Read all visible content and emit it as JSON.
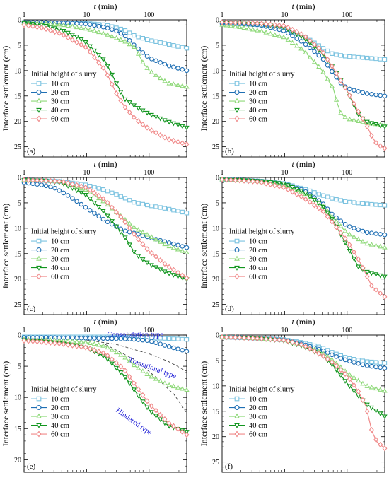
{
  "figure": {
    "series_styles": {
      "10 cm": {
        "color": "#7cc3e0",
        "marker": "square"
      },
      "20 cm": {
        "color": "#1f6fb4",
        "marker": "circle"
      },
      "30 cm": {
        "color": "#8fd97a",
        "marker": "triangle-up"
      },
      "40 cm": {
        "color": "#12961f",
        "marker": "triangle-down"
      },
      "60 cm": {
        "color": "#f08a8a",
        "marker": "diamond"
      }
    }
  },
  "chart_data": [
    {
      "type": "line",
      "panel_label": "(a)",
      "xlabel_var": "t",
      "xlabel_unit": " (min)",
      "ylabel": "Interface settlement (cm)",
      "x_scale": "log",
      "xlim": [
        1,
        400
      ],
      "ylim": [
        0,
        27
      ],
      "y_inverted": true,
      "x_ticks": [
        1,
        10,
        100
      ],
      "x_tick_labels": [
        "1",
        "10",
        "100"
      ],
      "y_ticks": [
        0,
        5,
        10,
        15,
        20,
        25
      ],
      "y_tick_labels": [
        "0",
        "5",
        "10",
        "15",
        "20",
        "25"
      ],
      "legend_title": "Initial height of slurry",
      "legend_placement": "left-middle",
      "series": [
        {
          "name": "10 cm",
          "x": [
            1,
            2,
            4,
            10,
            20,
            40,
            60,
            100,
            200,
            400
          ],
          "y": [
            0.5,
            0.6,
            0.6,
            0.7,
            1.0,
            2.0,
            3.2,
            4.0,
            4.8,
            5.6
          ]
        },
        {
          "name": "20 cm",
          "x": [
            1,
            2,
            4,
            10,
            20,
            30,
            40,
            60,
            100,
            200,
            400
          ],
          "y": [
            0.5,
            0.5,
            0.6,
            0.8,
            1.5,
            2.2,
            3.0,
            5.2,
            7.5,
            9.0,
            10.0
          ]
        },
        {
          "name": "30 cm",
          "x": [
            1,
            2,
            4,
            10,
            20,
            40,
            60,
            80,
            100,
            200,
            400
          ],
          "y": [
            0.6,
            0.7,
            1.0,
            1.8,
            2.8,
            4.2,
            5.5,
            8.5,
            10.0,
            12.5,
            13.2
          ]
        },
        {
          "name": "40 cm",
          "x": [
            1,
            2,
            4,
            7,
            10,
            20,
            30,
            40,
            60,
            100,
            200,
            400
          ],
          "y": [
            0.6,
            1.0,
            2.0,
            3.3,
            4.5,
            8.2,
            12.5,
            15.5,
            17.0,
            18.5,
            20.0,
            21.2
          ]
        },
        {
          "name": "60 cm",
          "x": [
            1,
            2,
            4,
            10,
            20,
            30,
            40,
            60,
            100,
            200,
            400
          ],
          "y": [
            1.0,
            1.6,
            2.8,
            5.5,
            10.0,
            14.5,
            17.0,
            19.5,
            21.5,
            23.5,
            24.5
          ]
        }
      ]
    },
    {
      "type": "line",
      "panel_label": "(b)",
      "xlabel_var": "t",
      "xlabel_unit": " (min)",
      "ylabel": "Interface settlement (cm)",
      "x_scale": "log",
      "xlim": [
        1,
        400
      ],
      "ylim": [
        0,
        27
      ],
      "y_inverted": true,
      "x_ticks": [
        1,
        10,
        100
      ],
      "x_tick_labels": [
        "1",
        "10",
        "100"
      ],
      "y_ticks": [
        0,
        5,
        10,
        15,
        20,
        25
      ],
      "y_tick_labels": [
        "0",
        "5",
        "10",
        "15",
        "20",
        "25"
      ],
      "legend_title": "Initial height of slurry",
      "legend_placement": "left-middle",
      "series": [
        {
          "name": "10 cm",
          "x": [
            1,
            2,
            4,
            10,
            20,
            40,
            60,
            100,
            200,
            400
          ],
          "y": [
            0.7,
            0.8,
            1.0,
            1.8,
            3.2,
            5.5,
            6.8,
            7.2,
            7.5,
            7.8
          ]
        },
        {
          "name": "20 cm",
          "x": [
            1,
            2,
            4,
            10,
            20,
            40,
            60,
            80,
            100,
            200,
            400
          ],
          "y": [
            0.7,
            0.8,
            1.0,
            2.2,
            4.5,
            7.5,
            10.5,
            12.5,
            13.5,
            14.5,
            15.0
          ]
        },
        {
          "name": "30 cm",
          "x": [
            1,
            2,
            4,
            10,
            20,
            40,
            60,
            70,
            80,
            100,
            200,
            400
          ],
          "y": [
            1.0,
            1.5,
            2.2,
            3.5,
            6.0,
            10.0,
            13.5,
            16.5,
            18.5,
            19.5,
            20.3,
            20.8
          ]
        },
        {
          "name": "40 cm",
          "x": [
            1,
            2,
            4,
            10,
            20,
            40,
            60,
            80,
            100,
            150,
            200,
            400
          ],
          "y": [
            0.6,
            0.7,
            0.8,
            1.5,
            3.5,
            6.5,
            9.5,
            12.0,
            14.0,
            18.5,
            20.0,
            21.0
          ]
        },
        {
          "name": "60 cm",
          "x": [
            1,
            2,
            4,
            10,
            20,
            40,
            60,
            100,
            150,
            200,
            250,
            300,
            400
          ],
          "y": [
            0.5,
            0.6,
            0.7,
            1.2,
            3.0,
            6.2,
            9.5,
            14.0,
            18.0,
            20.5,
            23.0,
            24.5,
            25.3
          ]
        }
      ]
    },
    {
      "type": "line",
      "panel_label": "(c)",
      "xlabel_var": "t",
      "xlabel_unit": " (min)",
      "ylabel": "Interface settlement (cm)",
      "x_scale": "log",
      "xlim": [
        1,
        400
      ],
      "ylim": [
        0,
        27
      ],
      "y_inverted": true,
      "x_ticks": [
        1,
        10,
        100
      ],
      "x_tick_labels": [
        "1",
        "10",
        "100"
      ],
      "y_ticks": [
        0,
        5,
        10,
        15,
        20,
        25
      ],
      "y_tick_labels": [
        "0",
        "5",
        "10",
        "15",
        "20",
        "25"
      ],
      "legend_title": "Initial height of slurry",
      "legend_placement": "left-middle",
      "series": [
        {
          "name": "10 cm",
          "x": [
            1,
            2,
            4,
            10,
            20,
            40,
            60,
            100,
            200,
            400
          ],
          "y": [
            0.5,
            0.6,
            0.8,
            1.5,
            2.5,
            4.0,
            5.0,
            5.5,
            6.2,
            7.0
          ]
        },
        {
          "name": "20 cm",
          "x": [
            1,
            2,
            3,
            5,
            10,
            20,
            40,
            60,
            100,
            200,
            400
          ],
          "y": [
            1.0,
            1.5,
            2.0,
            3.5,
            6.0,
            8.5,
            10.5,
            11.0,
            11.8,
            12.8,
            13.8
          ]
        },
        {
          "name": "30 cm",
          "x": [
            1,
            2,
            4,
            10,
            20,
            40,
            60,
            100,
            200,
            400
          ],
          "y": [
            0.5,
            0.6,
            0.8,
            2.5,
            5.0,
            8.2,
            10.0,
            11.5,
            13.5,
            14.8
          ]
        },
        {
          "name": "40 cm",
          "x": [
            1,
            2,
            4,
            10,
            20,
            40,
            60,
            100,
            200,
            400
          ],
          "y": [
            0.5,
            0.6,
            1.0,
            3.5,
            7.0,
            11.5,
            15.0,
            17.0,
            18.8,
            20.0
          ]
        },
        {
          "name": "60 cm",
          "x": [
            1,
            2,
            4,
            10,
            20,
            40,
            60,
            100,
            200,
            400
          ],
          "y": [
            0.5,
            0.6,
            0.8,
            2.0,
            4.5,
            8.5,
            11.5,
            14.5,
            17.5,
            19.8
          ]
        }
      ]
    },
    {
      "type": "line",
      "panel_label": "(d)",
      "xlabel_var": "t",
      "xlabel_unit": " (min)",
      "ylabel": "Interface settlement (cm)",
      "x_scale": "log",
      "xlim": [
        1,
        400
      ],
      "ylim": [
        0,
        27
      ],
      "y_inverted": true,
      "x_ticks": [
        1,
        10,
        100
      ],
      "x_tick_labels": [
        "1",
        "10",
        "100"
      ],
      "y_ticks": [
        0,
        5,
        10,
        15,
        20,
        25
      ],
      "y_tick_labels": [
        "0",
        "5",
        "10",
        "15",
        "20",
        "25"
      ],
      "legend_title": "Initial height of slurry",
      "legend_placement": "left-middle",
      "series": [
        {
          "name": "10 cm",
          "x": [
            1,
            2,
            4,
            10,
            20,
            40,
            60,
            100,
            200,
            400
          ],
          "y": [
            0.4,
            0.5,
            0.7,
            1.2,
            2.2,
            3.5,
            4.2,
            4.8,
            5.2,
            5.5
          ]
        },
        {
          "name": "20 cm",
          "x": [
            1,
            2,
            4,
            10,
            20,
            40,
            60,
            100,
            200,
            400
          ],
          "y": [
            0.4,
            0.5,
            0.7,
            1.3,
            2.5,
            5.0,
            7.5,
            9.5,
            10.8,
            11.3
          ]
        },
        {
          "name": "30 cm",
          "x": [
            1,
            2,
            4,
            10,
            20,
            40,
            60,
            100,
            200,
            400
          ],
          "y": [
            0.4,
            0.5,
            0.8,
            1.5,
            3.0,
            5.5,
            8.0,
            11.0,
            13.0,
            13.8
          ]
        },
        {
          "name": "40 cm",
          "x": [
            1,
            2,
            4,
            10,
            20,
            40,
            60,
            100,
            150,
            200,
            400
          ],
          "y": [
            0.4,
            0.5,
            0.7,
            1.2,
            2.8,
            5.5,
            8.5,
            13.5,
            17.5,
            18.5,
            19.5
          ]
        },
        {
          "name": "60 cm",
          "x": [
            1,
            2,
            4,
            10,
            20,
            40,
            60,
            100,
            150,
            200,
            250,
            400
          ],
          "y": [
            0.4,
            0.6,
            0.9,
            2.0,
            4.0,
            6.5,
            9.0,
            12.5,
            16.0,
            19.0,
            21.5,
            23.5
          ]
        }
      ]
    },
    {
      "type": "line",
      "panel_label": "(e)",
      "xlabel_var": "t",
      "xlabel_unit": " (min)",
      "ylabel": "Interface settlement (cm)",
      "x_scale": "log",
      "xlim": [
        1,
        400
      ],
      "ylim": [
        0,
        22
      ],
      "y_inverted": true,
      "x_ticks": [
        1,
        10,
        100
      ],
      "x_tick_labels": [
        "1",
        "10",
        "100"
      ],
      "y_ticks": [
        0,
        5,
        10,
        15,
        20
      ],
      "y_tick_labels": [
        "0",
        "5",
        "10",
        "15",
        "20"
      ],
      "legend_title": "Initial height of slurry",
      "legend_placement": "left-middle",
      "annotations": [
        {
          "text": "Consolidation type",
          "x": 60,
          "y": 0.3,
          "rotate": 0
        },
        {
          "text": "Transitional type",
          "x": 110,
          "y": 5.6,
          "rotate": 20
        },
        {
          "text": "Hindered type",
          "x": 55,
          "y": 14.2,
          "rotate": 35
        }
      ],
      "dashed_guides": [
        {
          "x": [
            10,
            30,
            100,
            200,
            400
          ],
          "y": [
            0.8,
            1.5,
            3.0,
            4.2,
            5.8
          ]
        },
        {
          "x": [
            20,
            60,
            120,
            250,
            400
          ],
          "y": [
            1.5,
            4.0,
            6.5,
            9.5,
            12.5
          ]
        }
      ],
      "series": [
        {
          "name": "10 cm",
          "x": [
            1,
            2,
            4,
            10,
            20,
            40,
            60,
            100,
            200,
            400
          ],
          "y": [
            0.3,
            0.3,
            0.3,
            0.3,
            0.3,
            0.35,
            0.4,
            0.45,
            0.55,
            0.7
          ]
        },
        {
          "name": "20 cm",
          "x": [
            1,
            2,
            4,
            10,
            20,
            40,
            60,
            100,
            200,
            400
          ],
          "y": [
            0.4,
            0.4,
            0.45,
            0.5,
            0.55,
            0.6,
            0.7,
            0.9,
            1.8,
            2.6
          ]
        },
        {
          "name": "30 cm",
          "x": [
            1,
            2,
            4,
            10,
            20,
            40,
            60,
            100,
            200,
            400
          ],
          "y": [
            0.7,
            0.8,
            0.9,
            1.2,
            1.8,
            3.5,
            5.0,
            6.5,
            8.0,
            8.8
          ]
        },
        {
          "name": "40 cm",
          "x": [
            1,
            2,
            4,
            10,
            20,
            40,
            60,
            100,
            200,
            400
          ],
          "y": [
            0.8,
            1.0,
            1.3,
            2.0,
            3.5,
            6.5,
            9.0,
            12.0,
            14.5,
            15.5
          ]
        },
        {
          "name": "60 cm",
          "x": [
            1,
            2,
            4,
            10,
            20,
            40,
            60,
            100,
            200,
            400
          ],
          "y": [
            0.9,
            1.1,
            1.4,
            2.0,
            3.0,
            5.5,
            8.0,
            11.0,
            14.0,
            16.0
          ]
        }
      ]
    },
    {
      "type": "line",
      "panel_label": "(f)",
      "xlabel_var": "t",
      "xlabel_unit": " (min)",
      "ylabel": "Interface settlement (cm)",
      "x_scale": "log",
      "xlim": [
        1,
        400
      ],
      "ylim": [
        0,
        27
      ],
      "y_inverted": true,
      "x_ticks": [
        1,
        10,
        100
      ],
      "x_tick_labels": [
        "1",
        "10",
        "100"
      ],
      "y_ticks": [
        0,
        5,
        10,
        15,
        20,
        25
      ],
      "y_tick_labels": [
        "0",
        "5",
        "10",
        "15",
        "20",
        "25"
      ],
      "legend_title": "Initial height of slurry",
      "legend_placement": "left-middle",
      "series": [
        {
          "name": "10 cm",
          "x": [
            1,
            2,
            4,
            10,
            20,
            40,
            60,
            100,
            200,
            400
          ],
          "y": [
            0.4,
            0.5,
            0.6,
            0.9,
            1.5,
            2.5,
            3.5,
            4.5,
            5.2,
            5.5
          ]
        },
        {
          "name": "20 cm",
          "x": [
            1,
            2,
            4,
            10,
            20,
            40,
            60,
            100,
            200,
            400
          ],
          "y": [
            0.4,
            0.5,
            0.7,
            1.0,
            1.8,
            3.0,
            4.0,
            5.0,
            6.0,
            6.5
          ]
        },
        {
          "name": "30 cm",
          "x": [
            1,
            2,
            4,
            10,
            20,
            40,
            60,
            100,
            200,
            400
          ],
          "y": [
            0.4,
            0.5,
            0.7,
            1.0,
            2.0,
            3.5,
            5.0,
            7.5,
            10.0,
            11.0
          ]
        },
        {
          "name": "40 cm",
          "x": [
            1,
            2,
            4,
            10,
            20,
            40,
            60,
            100,
            200,
            400
          ],
          "y": [
            0.4,
            0.5,
            0.7,
            1.1,
            2.2,
            4.0,
            6.0,
            9.5,
            13.5,
            16.0
          ]
        },
        {
          "name": "60 cm",
          "x": [
            1,
            2,
            4,
            10,
            20,
            40,
            60,
            100,
            150,
            200,
            250,
            300,
            400
          ],
          "y": [
            0.4,
            0.5,
            0.7,
            1.0,
            2.0,
            4.0,
            5.5,
            8.0,
            11.0,
            14.0,
            19.0,
            21.0,
            22.3
          ]
        }
      ]
    }
  ]
}
